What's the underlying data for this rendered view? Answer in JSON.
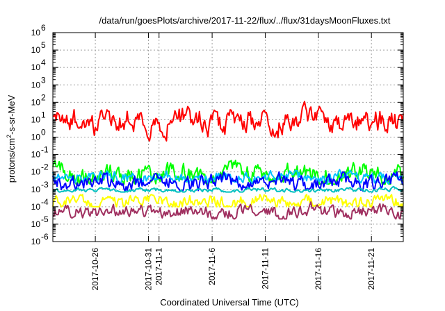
{
  "chart_data": {
    "type": "line",
    "title": "/data/run/goesPlots/archive/2017-11-22/flux/../flux/31daysMoonFluxes.txt",
    "xlabel": "Coordinated Universal Time (UTC)",
    "ylabel_main": "protons/cm",
    "ylabel_sup": "2",
    "ylabel_rest": "-s-sr-MeV",
    "y_scale": "log",
    "ylim": [
      1e-06,
      1000000.0
    ],
    "y_tick_exponents": [
      -6,
      -5,
      -4,
      -3,
      -2,
      -1,
      0,
      1,
      2,
      3,
      4,
      5,
      6
    ],
    "y_tick_base": "10",
    "xlim": [
      "2017-10-22",
      "2017-11-24"
    ],
    "x_tick_labels": [
      "2017-10-26",
      "2017-10-31",
      "2017-11-1",
      "2017-11-6",
      "2017-11-11",
      "2017-11-16",
      "2017-11-21"
    ],
    "x_tick_dates": [
      "2017-10-26",
      "2017-10-31",
      "2017-11-01",
      "2017-11-06",
      "2017-11-11",
      "2017-11-16",
      "2017-11-21"
    ],
    "grid": true,
    "series": [
      {
        "color": "#ff0000",
        "log10_center": 0.9,
        "log10_spread": 0.55,
        "values_range": [
          0.4,
          120
        ]
      },
      {
        "color": "#00ff00",
        "log10_center": -2.15,
        "log10_spread": 0.45,
        "values_range": [
          0.002,
          0.08
        ]
      },
      {
        "color": "#00c0ff",
        "log10_center": -2.3,
        "log10_spread": 0.25,
        "values_range": [
          0.002,
          0.02
        ]
      },
      {
        "color": "#0000ff",
        "log10_center": -2.6,
        "log10_spread": 0.35,
        "values_range": [
          0.0008,
          0.01
        ]
      },
      {
        "color": "#00c0c0",
        "log10_center": -3.05,
        "log10_spread": 0.1,
        "values_range": [
          0.0007,
          0.0015
        ]
      },
      {
        "color": "#ffff00",
        "log10_center": -3.7,
        "log10_spread": 0.3,
        "values_range": [
          0.0001,
          0.0005
        ]
      },
      {
        "color": "#a03060",
        "log10_center": -4.3,
        "log10_spread": 0.3,
        "values_range": [
          2e-05,
          0.0002
        ]
      }
    ]
  }
}
